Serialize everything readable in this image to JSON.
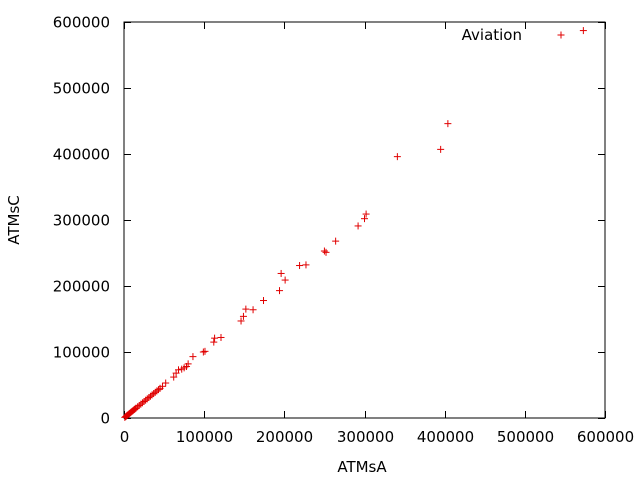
{
  "chart_data": {
    "type": "scatter",
    "xlabel": "ATMsA",
    "ylabel": "ATMsC",
    "xlim": [
      0,
      600000
    ],
    "ylim": [
      0,
      600000
    ],
    "x_ticks": [
      "0",
      "100000",
      "200000",
      "300000",
      "400000",
      "500000",
      "600000"
    ],
    "y_ticks": [
      "0",
      "100000",
      "200000",
      "300000",
      "400000",
      "500000",
      "600000"
    ],
    "x_tick_values": [
      0,
      100000,
      200000,
      300000,
      400000,
      500000,
      600000
    ],
    "y_tick_values": [
      0,
      100000,
      200000,
      300000,
      400000,
      500000,
      600000
    ],
    "grid": false,
    "legend_position": "top-right",
    "series": [
      {
        "name": "Aviation",
        "color": "#e00000",
        "marker": "plus",
        "points": [
          [
            1000,
            1000
          ],
          [
            2000,
            2000
          ],
          [
            3000,
            3000
          ],
          [
            4000,
            4000
          ],
          [
            5000,
            5000
          ],
          [
            6000,
            6000
          ],
          [
            7000,
            7000
          ],
          [
            8000,
            8000
          ],
          [
            9000,
            9000
          ],
          [
            10000,
            10000
          ],
          [
            11000,
            11000
          ],
          [
            12000,
            12000
          ],
          [
            13000,
            13000
          ],
          [
            14000,
            14000
          ],
          [
            15000,
            15000
          ],
          [
            17000,
            17000
          ],
          [
            19000,
            19000
          ],
          [
            21000,
            21000
          ],
          [
            23000,
            23000
          ],
          [
            25000,
            25000
          ],
          [
            27000,
            27000
          ],
          [
            29000,
            29000
          ],
          [
            31000,
            31000
          ],
          [
            33000,
            33000
          ],
          [
            35000,
            35000
          ],
          [
            37000,
            37000
          ],
          [
            39000,
            39000
          ],
          [
            41000,
            41000
          ],
          [
            43000,
            43000
          ],
          [
            45000,
            45000
          ],
          [
            48000,
            48000
          ],
          [
            52000,
            53000
          ],
          [
            62000,
            62000
          ],
          [
            65000,
            68000
          ],
          [
            68000,
            73000
          ],
          [
            72000,
            74000
          ],
          [
            75000,
            76000
          ],
          [
            78000,
            78000
          ],
          [
            80000,
            82000
          ],
          [
            86000,
            93000
          ],
          [
            99000,
            100000
          ],
          [
            101000,
            101000
          ],
          [
            112000,
            115000
          ],
          [
            113000,
            121000
          ],
          [
            121000,
            122000
          ],
          [
            146000,
            147000
          ],
          [
            149000,
            154000
          ],
          [
            152000,
            165000
          ],
          [
            161000,
            164000
          ],
          [
            174000,
            178000
          ],
          [
            194000,
            193000
          ],
          [
            196000,
            219000
          ],
          [
            201000,
            209000
          ],
          [
            219000,
            231000
          ],
          [
            227000,
            232000
          ],
          [
            250000,
            253000
          ],
          [
            252000,
            251000
          ],
          [
            264000,
            268000
          ],
          [
            292000,
            291000
          ],
          [
            300000,
            302000
          ],
          [
            302000,
            309000
          ],
          [
            341000,
            396000
          ],
          [
            395000,
            407000
          ],
          [
            404000,
            446000
          ],
          [
            573000,
            587000
          ]
        ]
      }
    ]
  }
}
